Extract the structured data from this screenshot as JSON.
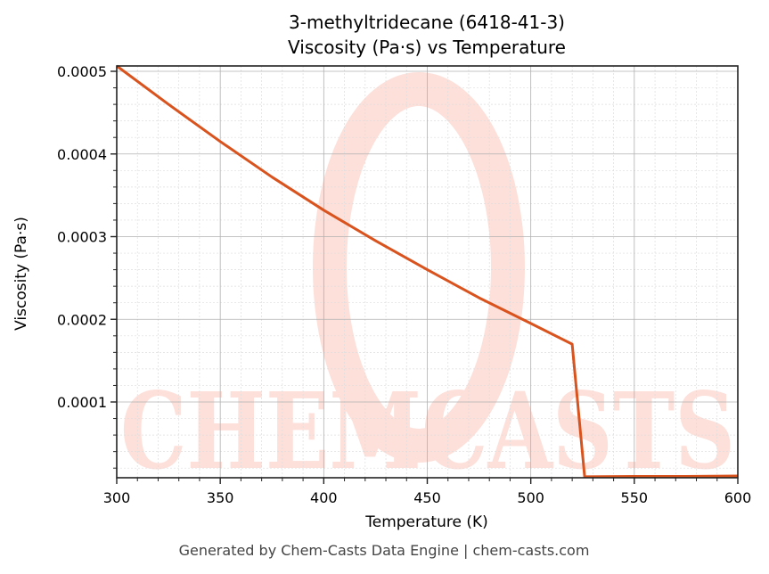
{
  "chart_data": {
    "type": "line",
    "title": "3-methyltridecane (6418-41-3)",
    "subtitle": "Viscosity (Pa·s) vs Temperature",
    "xlabel": "Temperature (K)",
    "ylabel": "Viscosity (Pa·s)",
    "xlim": [
      300,
      600
    ],
    "ylim": [
      8.5e-06,
      0.000508
    ],
    "x_ticks": [
      "300",
      "350",
      "400",
      "450",
      "500",
      "550",
      "600"
    ],
    "y_ticks": [
      "0.0001",
      "0.0002",
      "0.0003",
      "0.0004",
      "0.0005"
    ],
    "grid": true,
    "minor_grid": true,
    "legend": null,
    "series": [
      {
        "name": "Viscosity",
        "color": "#d9531e",
        "x": [
          300,
          325,
          350,
          375,
          400,
          425,
          450,
          475,
          500,
          520,
          526,
          550,
          575,
          600
        ],
        "values": [
          0.000507,
          0.00046,
          0.000415,
          0.000372,
          0.000332,
          0.000295,
          0.00026,
          0.000226,
          0.000195,
          0.00017,
          9.5e-06,
          1e-05,
          1e-05,
          1.05e-05
        ]
      }
    ],
    "annotations": [
      "Generated by Chem-Casts Data Engine | chem-casts.com"
    ],
    "watermark": "CHEMCASTS"
  },
  "header": {
    "title": "3-methyltridecane (6418-41-3)",
    "subtitle": "Viscosity (Pa·s) vs Temperature"
  },
  "axes": {
    "xlabel": "Temperature (K)",
    "ylabel": "Viscosity (Pa·s)"
  },
  "footer": {
    "text": "Generated by Chem-Casts Data Engine | chem-casts.com"
  },
  "colors": {
    "line": "#d9531e",
    "watermark": "#fde0da",
    "grid_major": "#b0b0b0",
    "grid_minor": "#dddddd"
  },
  "watermark_text": "CHEMCASTS"
}
